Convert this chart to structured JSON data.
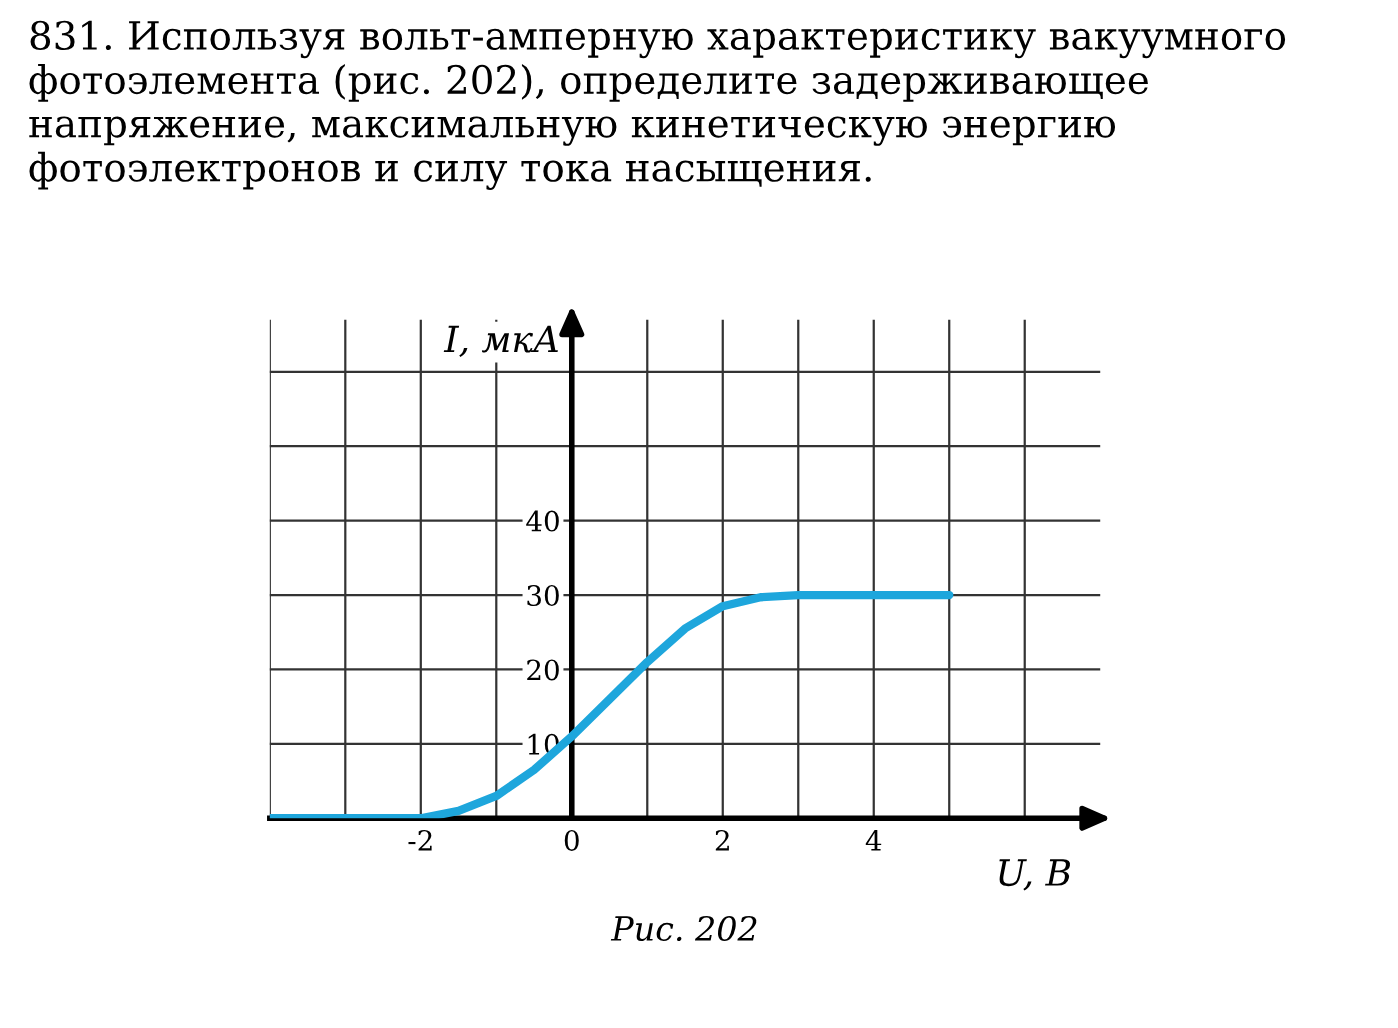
{
  "chart_data": {
    "type": "line",
    "title": "831. Используя вольт-амперную характеристику вакуумного фотоэлемента (рис. 202), определите задерживающее напряжение, максимальную кинетическую энергию фотоэлектронов и силу тока насыщения.",
    "xlabel": "U, В",
    "ylabel": "I, мкА",
    "annotations": [
      "Рис. 202"
    ],
    "series": [
      {
        "color": "#1ea6dc",
        "x": [
          -4,
          -3,
          -2,
          -1.5,
          -1,
          -0.5,
          0,
          0.5,
          1,
          1.5,
          2,
          2.5,
          3,
          4,
          5
        ],
        "values": [
          0,
          0,
          0,
          1,
          3,
          6.5,
          11,
          16,
          21,
          25.5,
          28.5,
          29.7,
          30,
          30,
          30
        ]
      }
    ],
    "xlim": [
      -4,
      7
    ],
    "ylim": [
      0,
      67
    ],
    "xticks": [
      {
        "value": -4,
        "label": null
      },
      {
        "value": -3,
        "label": null
      },
      -2,
      {
        "value": -1,
        "label": null
      },
      0,
      {
        "value": 1,
        "label": null
      },
      2,
      {
        "value": 3,
        "label": null
      },
      4,
      {
        "value": 5,
        "label": null
      },
      {
        "value": 6,
        "label": null
      }
    ],
    "yticks": [
      10,
      20,
      30,
      40,
      {
        "value": 50,
        "label": null
      },
      {
        "value": 60,
        "label": null
      }
    ],
    "grid": true,
    "marker": "none",
    "line_style": "solid",
    "legend": false
  }
}
